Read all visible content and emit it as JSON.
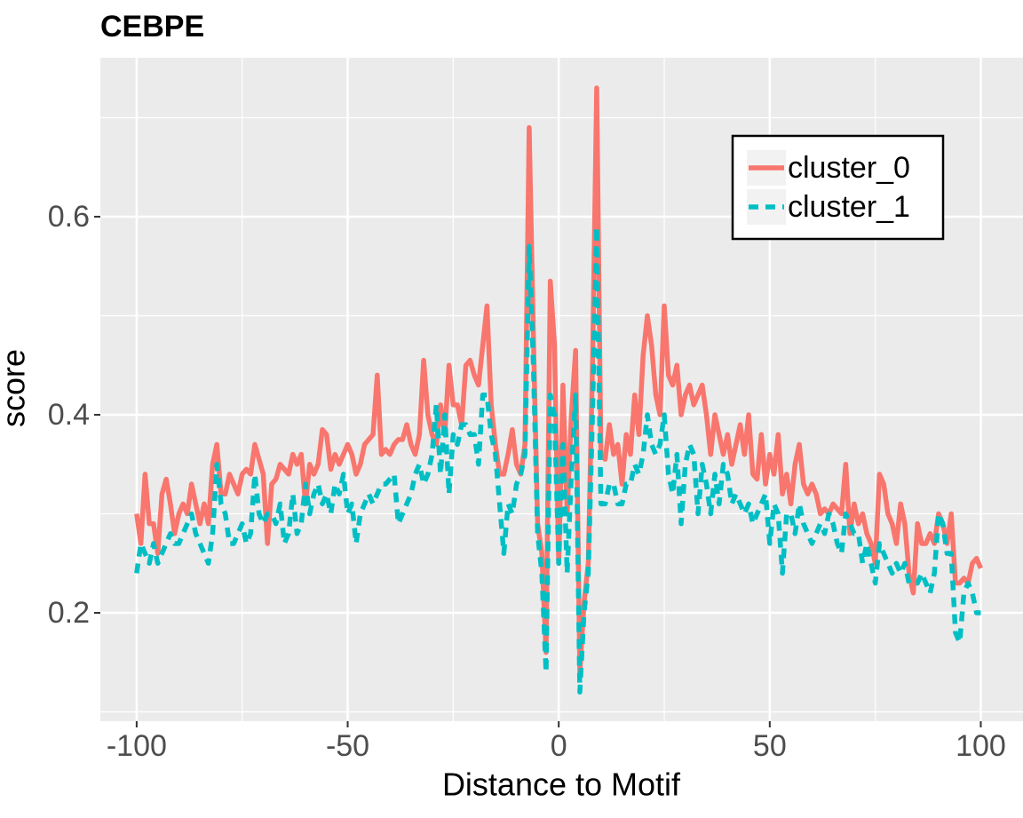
{
  "chart_data": {
    "type": "line",
    "title": "CEBPE",
    "xlabel": "Distance to Motif",
    "ylabel": "score",
    "x": [
      -100,
      -99,
      -98,
      -97,
      -96,
      -95,
      -94,
      -93,
      -92,
      -91,
      -90,
      -89,
      -88,
      -87,
      -86,
      -85,
      -84,
      -83,
      -82,
      -81,
      -80,
      -79,
      -78,
      -77,
      -76,
      -75,
      -74,
      -73,
      -72,
      -71,
      -70,
      -69,
      -68,
      -67,
      -66,
      -65,
      -64,
      -63,
      -62,
      -61,
      -60,
      -59,
      -58,
      -57,
      -56,
      -55,
      -54,
      -53,
      -52,
      -51,
      -50,
      -49,
      -48,
      -47,
      -46,
      -45,
      -44,
      -43,
      -42,
      -41,
      -40,
      -39,
      -38,
      -37,
      -36,
      -35,
      -34,
      -33,
      -32,
      -31,
      -30,
      -29,
      -28,
      -27,
      -26,
      -25,
      -24,
      -23,
      -22,
      -21,
      -20,
      -19,
      -18,
      -17,
      -16,
      -15,
      -14,
      -13,
      -12,
      -11,
      -10,
      -9,
      -8,
      -7,
      -6,
      -5,
      -4,
      -3,
      -2,
      -1,
      0,
      1,
      2,
      3,
      4,
      5,
      6,
      7,
      8,
      9,
      10,
      11,
      12,
      13,
      14,
      15,
      16,
      17,
      18,
      19,
      20,
      21,
      22,
      23,
      24,
      25,
      26,
      27,
      28,
      29,
      30,
      31,
      32,
      33,
      34,
      35,
      36,
      37,
      38,
      39,
      40,
      41,
      42,
      43,
      44,
      45,
      46,
      47,
      48,
      49,
      50,
      51,
      52,
      53,
      54,
      55,
      56,
      57,
      58,
      59,
      60,
      61,
      62,
      63,
      64,
      65,
      66,
      67,
      68,
      69,
      70,
      71,
      72,
      73,
      74,
      75,
      76,
      77,
      78,
      79,
      80,
      81,
      82,
      83,
      84,
      85,
      86,
      87,
      88,
      89,
      90,
      91,
      92,
      93,
      94,
      95,
      96,
      97,
      98,
      99,
      100
    ],
    "series": [
      {
        "name": "cluster_0",
        "color": "#F8766D",
        "dash": false,
        "values": [
          0.3,
          0.27,
          0.34,
          0.29,
          0.29,
          0.26,
          0.32,
          0.335,
          0.31,
          0.28,
          0.3,
          0.31,
          0.3,
          0.33,
          0.31,
          0.29,
          0.31,
          0.29,
          0.35,
          0.37,
          0.32,
          0.32,
          0.34,
          0.33,
          0.32,
          0.34,
          0.345,
          0.34,
          0.37,
          0.355,
          0.34,
          0.27,
          0.33,
          0.335,
          0.35,
          0.345,
          0.34,
          0.36,
          0.35,
          0.36,
          0.31,
          0.35,
          0.34,
          0.35,
          0.385,
          0.38,
          0.345,
          0.36,
          0.35,
          0.36,
          0.37,
          0.36,
          0.34,
          0.35,
          0.37,
          0.375,
          0.38,
          0.44,
          0.36,
          0.365,
          0.36,
          0.37,
          0.375,
          0.375,
          0.39,
          0.37,
          0.36,
          0.38,
          0.455,
          0.4,
          0.38,
          0.37,
          0.41,
          0.38,
          0.45,
          0.41,
          0.41,
          0.39,
          0.45,
          0.455,
          0.44,
          0.43,
          0.47,
          0.51,
          0.41,
          0.37,
          0.34,
          0.34,
          0.36,
          0.385,
          0.35,
          0.34,
          0.37,
          0.69,
          0.48,
          0.29,
          0.26,
          0.16,
          0.535,
          0.47,
          0.25,
          0.43,
          0.3,
          0.4,
          0.465,
          0.14,
          0.21,
          0.25,
          0.45,
          0.73,
          0.36,
          0.355,
          0.39,
          0.36,
          0.37,
          0.33,
          0.38,
          0.36,
          0.42,
          0.38,
          0.46,
          0.5,
          0.47,
          0.42,
          0.4,
          0.51,
          0.44,
          0.43,
          0.45,
          0.4,
          0.42,
          0.43,
          0.41,
          0.42,
          0.43,
          0.4,
          0.36,
          0.4,
          0.38,
          0.36,
          0.38,
          0.35,
          0.37,
          0.39,
          0.36,
          0.4,
          0.34,
          0.335,
          0.38,
          0.33,
          0.36,
          0.34,
          0.38,
          0.32,
          0.34,
          0.31,
          0.35,
          0.37,
          0.33,
          0.32,
          0.33,
          0.32,
          0.3,
          0.305,
          0.3,
          0.31,
          0.305,
          0.3,
          0.35,
          0.28,
          0.31,
          0.29,
          0.3,
          0.28,
          0.27,
          0.25,
          0.34,
          0.33,
          0.3,
          0.29,
          0.27,
          0.31,
          0.29,
          0.24,
          0.22,
          0.29,
          0.27,
          0.27,
          0.28,
          0.27,
          0.3,
          0.29,
          0.27,
          0.3,
          0.23,
          0.23,
          0.235,
          0.23,
          0.25,
          0.255,
          0.245
        ]
      },
      {
        "name": "cluster_1",
        "color": "#00BFC4",
        "dash": true,
        "values": [
          0.24,
          0.27,
          0.26,
          0.25,
          0.27,
          0.25,
          0.26,
          0.27,
          0.28,
          0.27,
          0.27,
          0.28,
          0.29,
          0.3,
          0.28,
          0.27,
          0.26,
          0.25,
          0.28,
          0.35,
          0.31,
          0.3,
          0.27,
          0.27,
          0.28,
          0.29,
          0.27,
          0.28,
          0.34,
          0.3,
          0.29,
          0.3,
          0.3,
          0.29,
          0.31,
          0.27,
          0.28,
          0.32,
          0.28,
          0.29,
          0.33,
          0.3,
          0.32,
          0.33,
          0.31,
          0.32,
          0.3,
          0.33,
          0.32,
          0.34,
          0.3,
          0.31,
          0.27,
          0.3,
          0.31,
          0.32,
          0.31,
          0.32,
          0.33,
          0.33,
          0.335,
          0.34,
          0.29,
          0.3,
          0.31,
          0.32,
          0.34,
          0.35,
          0.33,
          0.34,
          0.36,
          0.41,
          0.34,
          0.4,
          0.32,
          0.38,
          0.37,
          0.39,
          0.39,
          0.38,
          0.38,
          0.35,
          0.42,
          0.42,
          0.38,
          0.36,
          0.31,
          0.26,
          0.31,
          0.3,
          0.33,
          0.34,
          0.36,
          0.57,
          0.45,
          0.28,
          0.24,
          0.14,
          0.42,
          0.4,
          0.25,
          0.37,
          0.24,
          0.34,
          0.42,
          0.12,
          0.2,
          0.24,
          0.4,
          0.59,
          0.31,
          0.31,
          0.33,
          0.33,
          0.31,
          0.31,
          0.33,
          0.33,
          0.35,
          0.34,
          0.36,
          0.4,
          0.37,
          0.36,
          0.37,
          0.4,
          0.34,
          0.32,
          0.36,
          0.29,
          0.35,
          0.37,
          0.36,
          0.3,
          0.35,
          0.33,
          0.3,
          0.34,
          0.31,
          0.35,
          0.34,
          0.31,
          0.32,
          0.31,
          0.3,
          0.31,
          0.29,
          0.3,
          0.31,
          0.32,
          0.27,
          0.31,
          0.3,
          0.24,
          0.3,
          0.3,
          0.28,
          0.31,
          0.29,
          0.28,
          0.27,
          0.28,
          0.29,
          0.28,
          0.3,
          0.29,
          0.27,
          0.26,
          0.3,
          0.29,
          0.28,
          0.28,
          0.25,
          0.27,
          0.25,
          0.23,
          0.27,
          0.26,
          0.25,
          0.24,
          0.25,
          0.24,
          0.25,
          0.23,
          0.23,
          0.23,
          0.24,
          0.23,
          0.22,
          0.24,
          0.3,
          0.29,
          0.26,
          0.26,
          0.18,
          0.17,
          0.22,
          0.23,
          0.22,
          0.2,
          0.2
        ]
      }
    ],
    "xlim": [
      -108.6,
      110
    ],
    "xticks": [
      -100,
      -50,
      0,
      50,
      100
    ],
    "xminor": [
      -75,
      -25,
      25,
      75
    ],
    "ylim": [
      0.0906,
      0.7605
    ],
    "yticks": [
      0.2,
      0.4,
      0.6
    ],
    "yminor": [
      0.1,
      0.3,
      0.5,
      0.7
    ],
    "grid": true,
    "legend": "top-right"
  }
}
